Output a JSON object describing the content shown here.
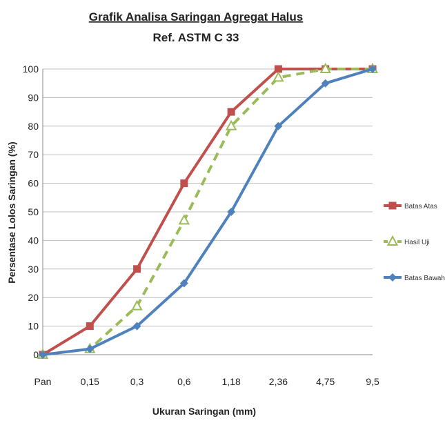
{
  "chart_data": {
    "type": "line",
    "title": "Grafik  Analisa Saringan Agregat Halus",
    "subtitle": "Ref. ASTM C 33",
    "xlabel": "Ukuran  Saringan (mm)",
    "ylabel": "Persentase  Lolos  Saringan  (%)",
    "categories": [
      "Pan",
      "0,15",
      "0,3",
      "0,6",
      "1,18",
      "2,36",
      "4,75",
      "9,5"
    ],
    "ylim": [
      0,
      100
    ],
    "yticks": [
      0,
      10,
      20,
      30,
      40,
      50,
      60,
      70,
      80,
      90,
      100
    ],
    "grid": true,
    "legend_position": "right",
    "series": [
      {
        "name": "Batas Atas",
        "values": [
          0,
          10,
          30,
          60,
          85,
          100,
          100,
          100
        ],
        "color": "#c0504d",
        "marker": "square",
        "dash": false
      },
      {
        "name": "Hasil Uji",
        "values": [
          0,
          2,
          17,
          47,
          80,
          97,
          100,
          100
        ],
        "color": "#9bbb59",
        "marker": "triangle",
        "dash": true
      },
      {
        "name": "Batas Bawah",
        "values": [
          0,
          2,
          10,
          25,
          50,
          80,
          95,
          100
        ],
        "color": "#4f81bd",
        "marker": "diamond",
        "dash": false
      }
    ]
  }
}
